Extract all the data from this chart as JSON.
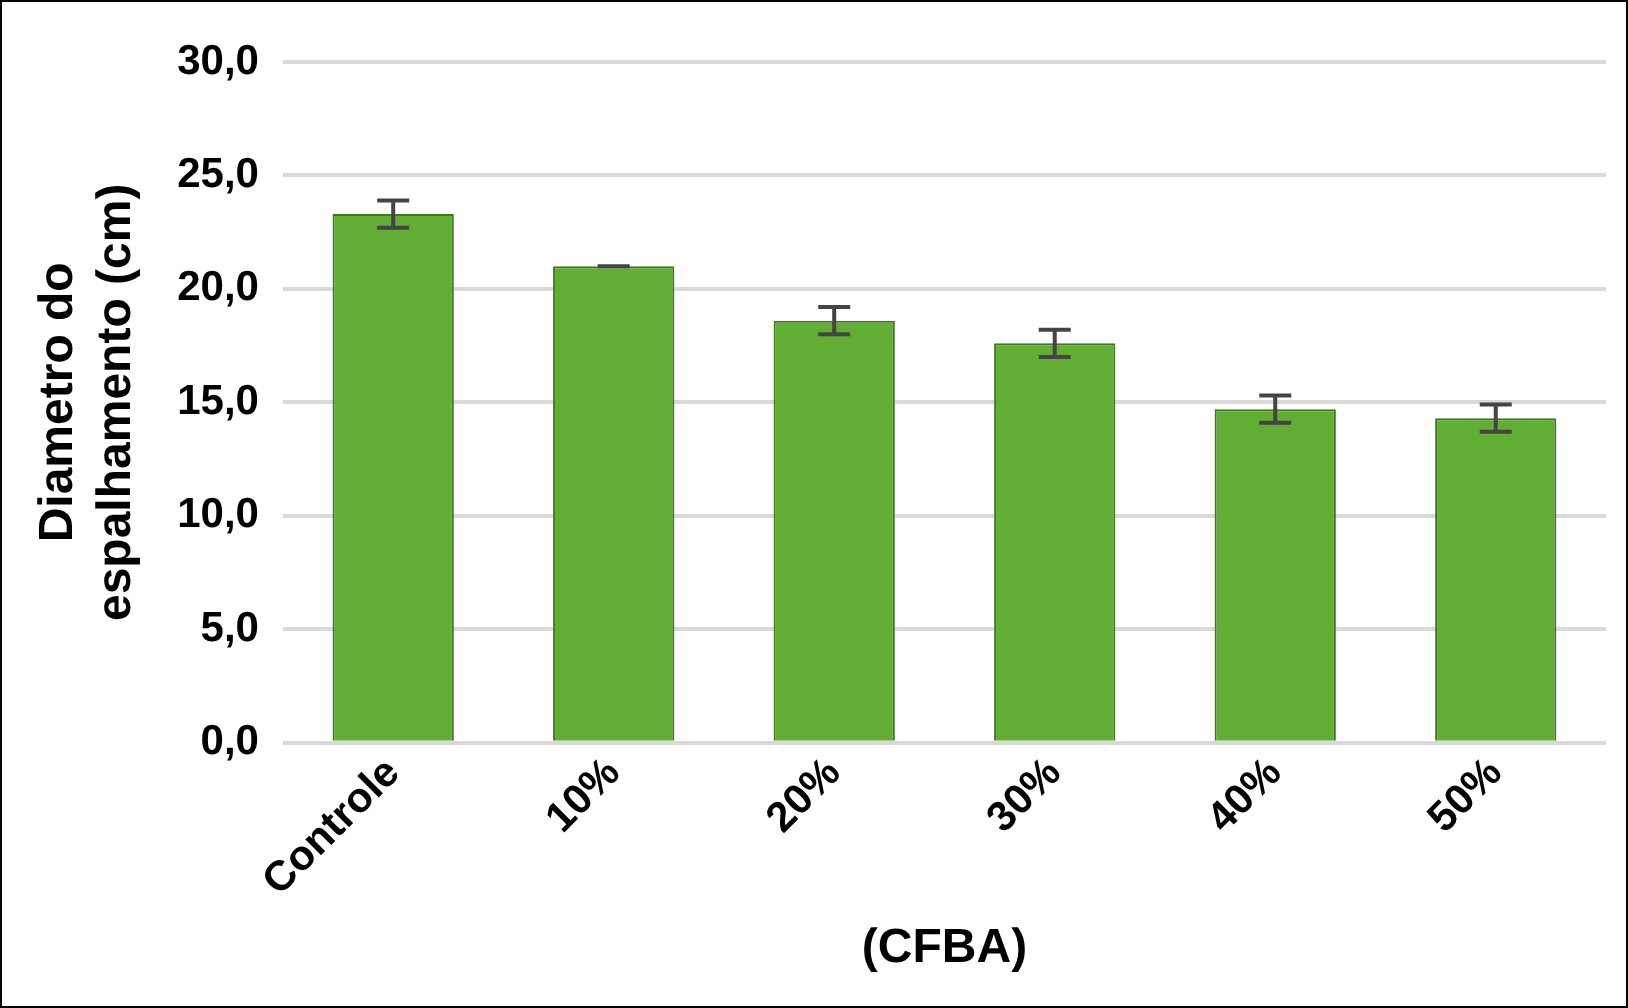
{
  "chart_data": {
    "type": "bar",
    "xlabel": "(CFBA)",
    "ylabel": "Diametro do espalhamento (cm)",
    "categories": [
      "Controle",
      "10%",
      "20%",
      "30%",
      "40%",
      "50%"
    ],
    "values": [
      23.3,
      21.0,
      18.6,
      17.6,
      14.7,
      14.3
    ],
    "errors": [
      0.6,
      0,
      0.6,
      0.6,
      0.6,
      0.6
    ],
    "color": "#62ad34",
    "ylim": [
      0,
      30
    ],
    "yticks": [
      {
        "value": 0,
        "label": "0,0"
      },
      {
        "value": 5,
        "label": "5,0"
      },
      {
        "value": 10,
        "label": "10,0"
      },
      {
        "value": 15,
        "label": "15,0"
      },
      {
        "value": 20,
        "label": "20,0"
      },
      {
        "value": 25,
        "label": "25,0"
      },
      {
        "value": 30,
        "label": "30,0"
      }
    ],
    "grid": "y"
  }
}
